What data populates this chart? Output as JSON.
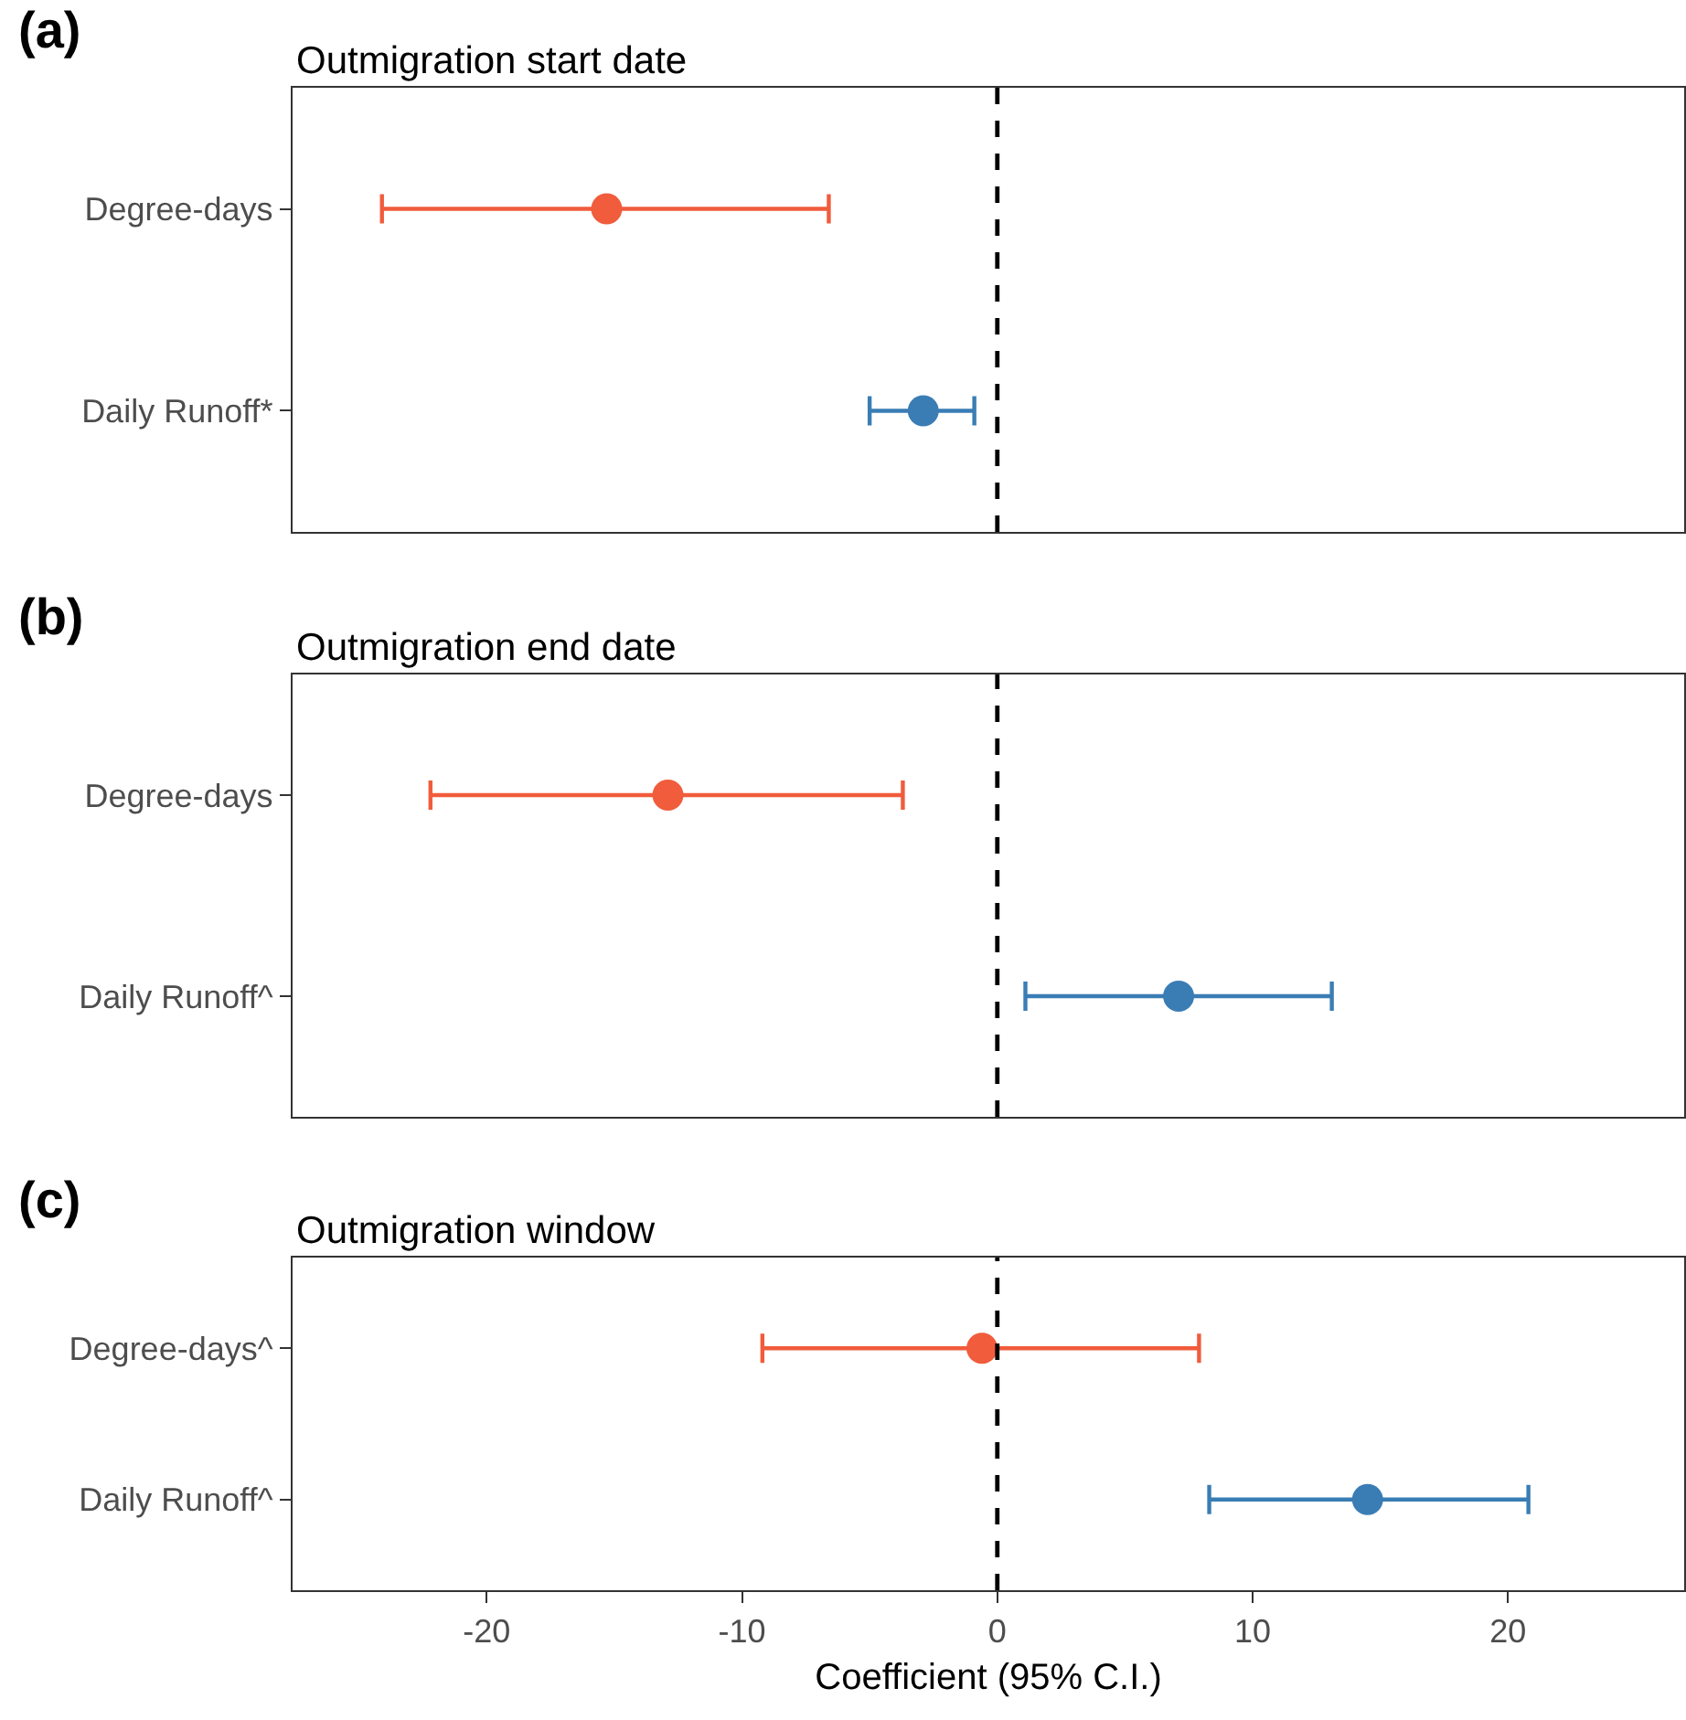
{
  "chart_data": [
    {
      "type": "scatter",
      "orientation": "horizontal",
      "title": "Outmigration start date",
      "annotations": [
        "(a)"
      ],
      "categories": [
        "Degree-days",
        "Daily Runoff*"
      ],
      "values": [
        -15.3,
        -2.9
      ],
      "colors": [
        "#f05c3c",
        "#3a7db5"
      ],
      "errors": [
        [
          -24.1,
          -6.6
        ],
        [
          -5.0,
          -0.9
        ]
      ],
      "xlim": [
        -27.6,
        26.9
      ],
      "tick_labels": "y",
      "ref_lines": [
        {
          "axis": "x",
          "value": 0,
          "color": "#000000",
          "line_style": "dashed"
        }
      ],
      "marker": "circle"
    },
    {
      "type": "scatter",
      "orientation": "horizontal",
      "title": "Outmigration end date",
      "annotations": [
        "(b)"
      ],
      "categories": [
        "Degree-days",
        "Daily Runoff^"
      ],
      "values": [
        -12.9,
        7.1
      ],
      "colors": [
        "#f05c3c",
        "#3a7db5"
      ],
      "errors": [
        [
          -22.2,
          -3.7
        ],
        [
          1.1,
          13.1
        ]
      ],
      "xlim": [
        -27.6,
        26.9
      ],
      "tick_labels": "y",
      "ref_lines": [
        {
          "axis": "x",
          "value": 0,
          "color": "#000000",
          "line_style": "dashed"
        }
      ],
      "marker": "circle"
    },
    {
      "type": "scatter",
      "orientation": "horizontal",
      "title": "Outmigration window",
      "annotations": [
        "(c)"
      ],
      "xlabel": "Coefficient (95% C.I.)",
      "categories": [
        "Degree-days^",
        "Daily Runoff^"
      ],
      "values": [
        -0.6,
        14.5
      ],
      "colors": [
        "#f05c3c",
        "#3a7db5"
      ],
      "errors": [
        [
          -9.2,
          7.9
        ],
        [
          8.3,
          20.8
        ]
      ],
      "xlim": [
        -27.6,
        26.9
      ],
      "xticks": [
        -20,
        -10,
        0,
        10,
        20
      ],
      "ref_lines": [
        {
          "axis": "x",
          "value": 0,
          "color": "#000000",
          "line_style": "dashed"
        }
      ],
      "marker": "circle"
    }
  ]
}
